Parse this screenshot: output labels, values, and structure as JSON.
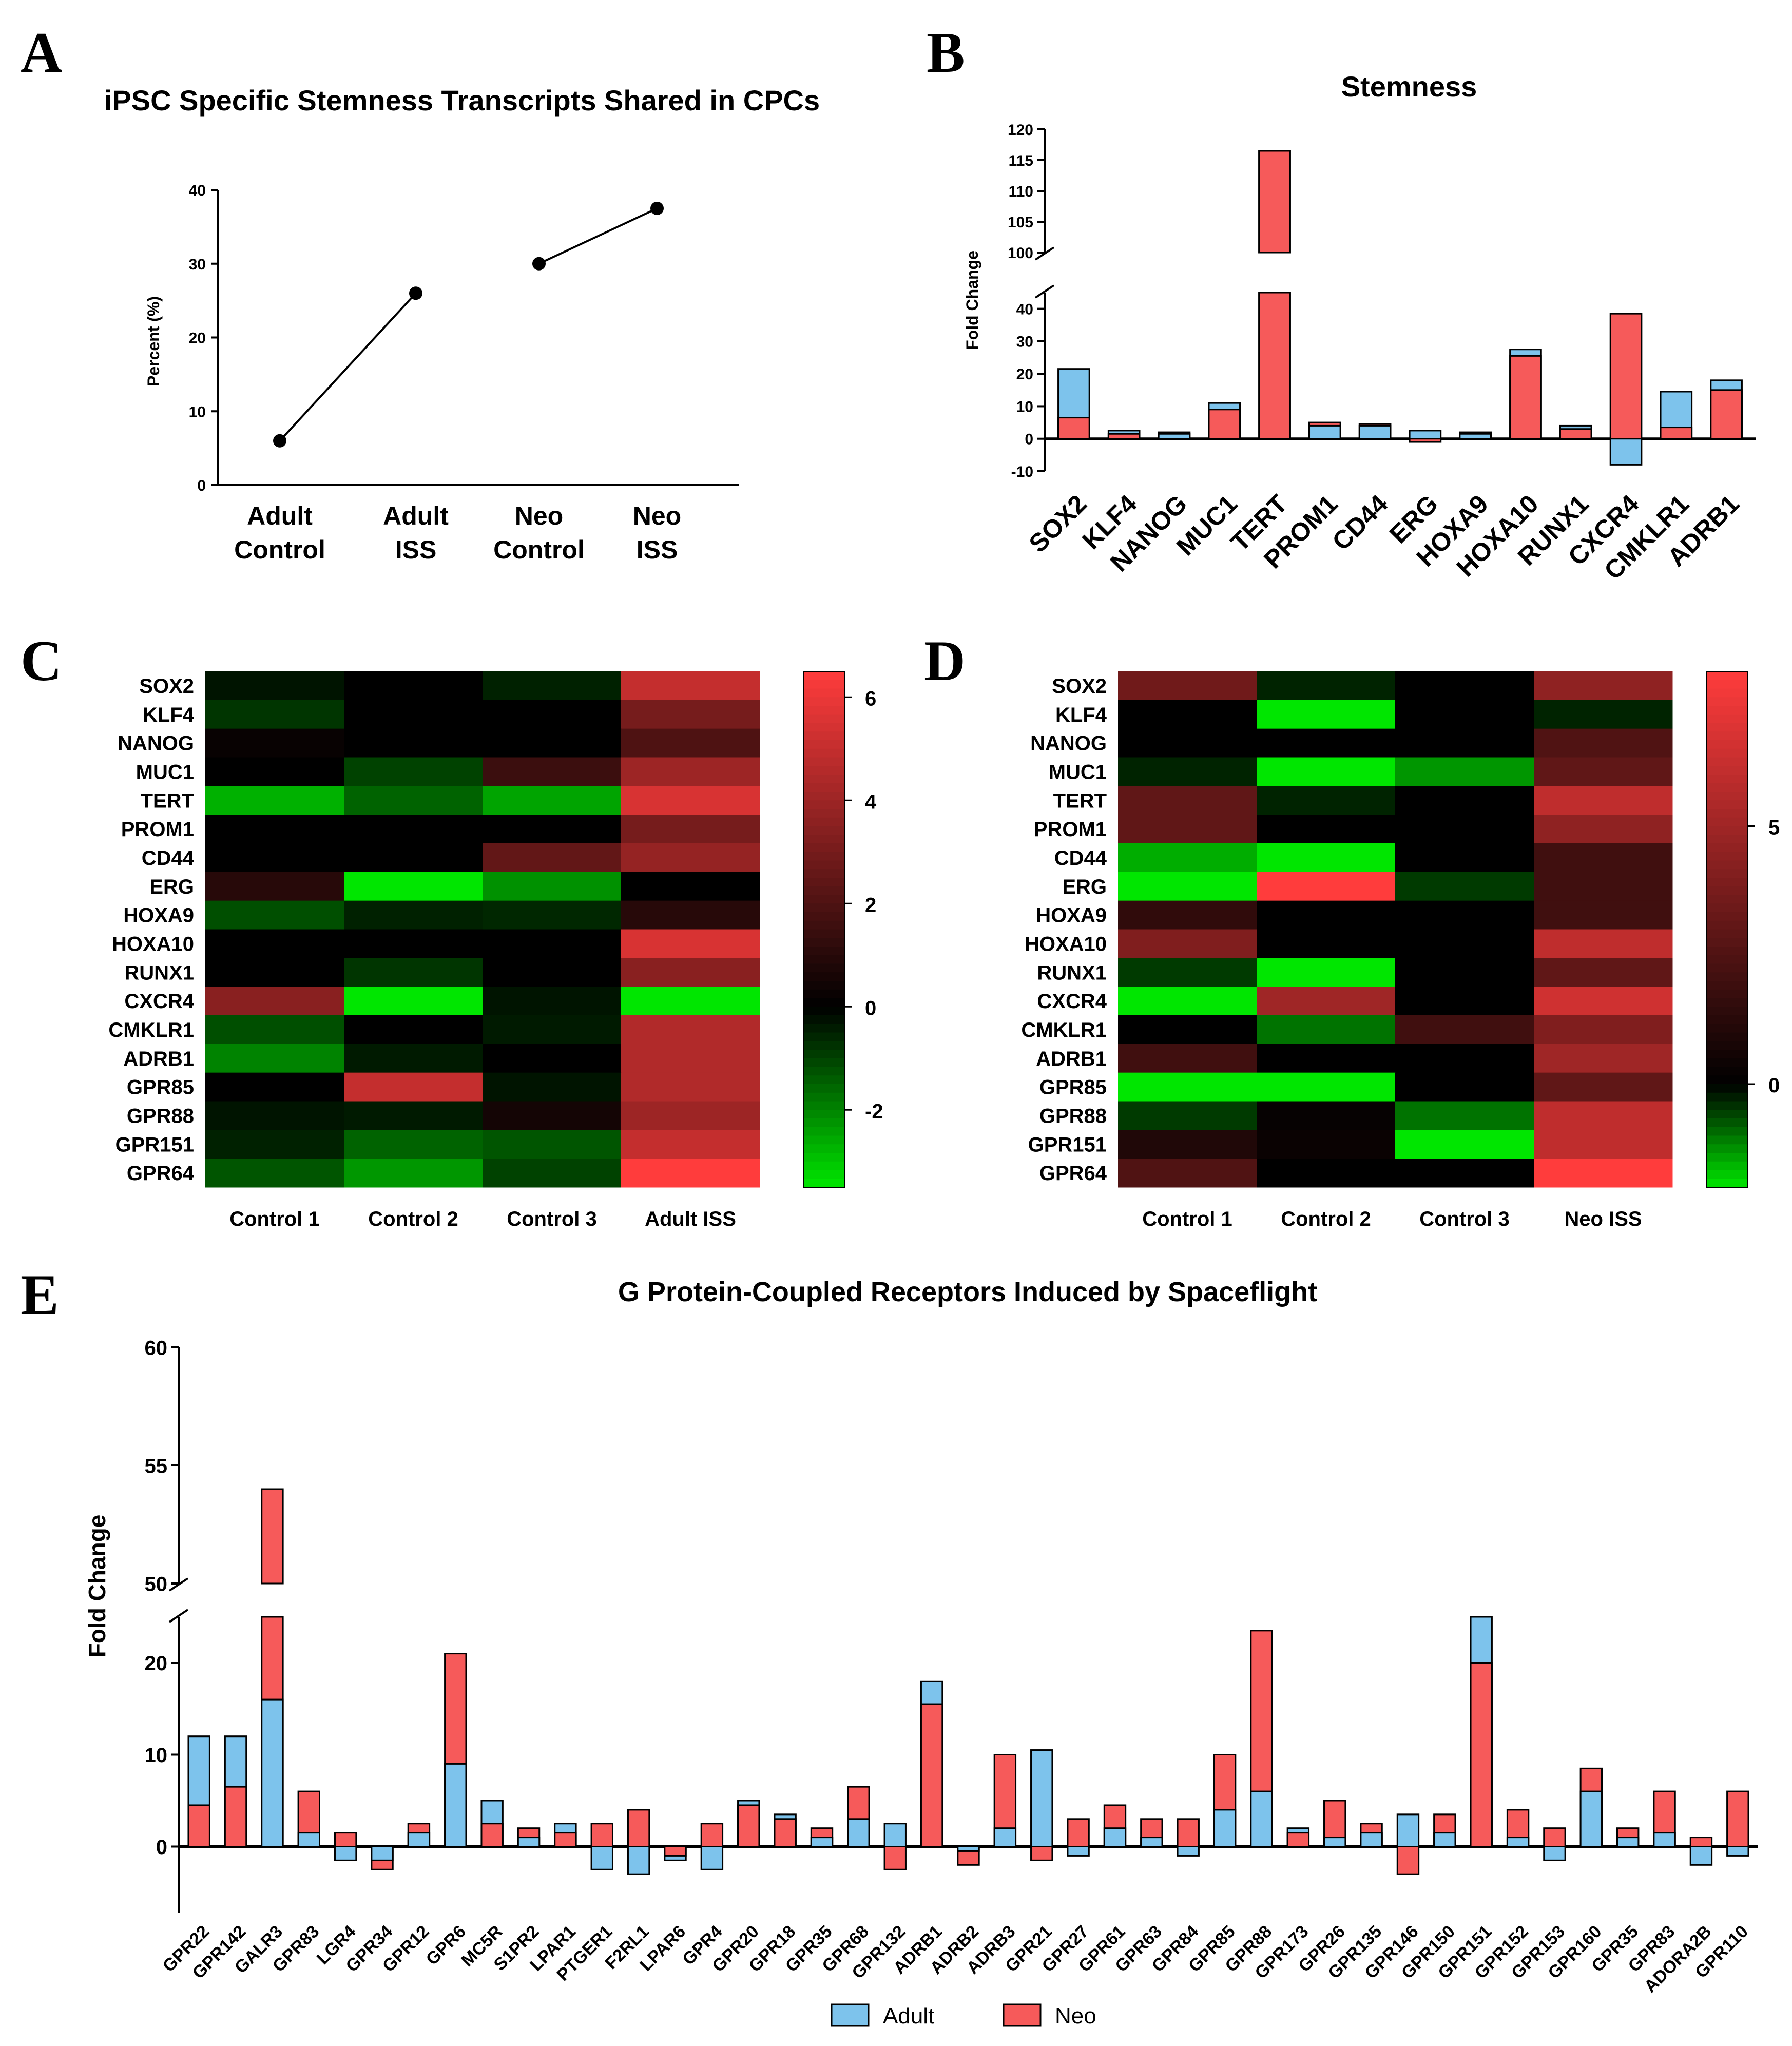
{
  "colors": {
    "adult": "#7dc3ec",
    "neo": "#f65a5a",
    "axis": "#000000"
  },
  "chart_data": [
    {
      "panel": "A",
      "type": "line",
      "title": "iPSC Specific Stemness Transcripts Shared in CPCs",
      "ylabel": "Percent (%)",
      "ylim": [
        0,
        40
      ],
      "yticks": [
        "0",
        "10",
        "20",
        "30",
        "40"
      ],
      "categories": [
        "Adult\nControl",
        "Adult\nISS",
        "Neo\nControl",
        "Neo\nISS"
      ],
      "values": [
        6,
        26,
        30,
        37.5
      ],
      "segments": [
        [
          0,
          1
        ],
        [
          2,
          3
        ]
      ]
    },
    {
      "panel": "B",
      "type": "bar",
      "title": "Stemness",
      "ylabel": "Fold Change",
      "ylim": [
        -10,
        120
      ],
      "axis_break": [
        45,
        100
      ],
      "yticks_lower": [
        "-10",
        "0",
        "10",
        "20",
        "30",
        "40"
      ],
      "yticks_upper": [
        "100",
        "105",
        "110",
        "115",
        "120"
      ],
      "categories": [
        "SOX2",
        "KLF4",
        "NANOG",
        "MUC1",
        "TERT",
        "PROM1",
        "CD44",
        "ERG",
        "HOXA9",
        "HOXA10",
        "RUNX1",
        "CXCR4",
        "CMKLR1",
        "ADRB1"
      ],
      "series": [
        {
          "name": "Adult",
          "values": [
            21.5,
            2.5,
            1.5,
            11,
            116.5,
            4,
            4,
            2.5,
            1.5,
            27.5,
            4,
            -8,
            14.5,
            18
          ]
        },
        {
          "name": "Neo",
          "values": [
            6.5,
            1.5,
            2,
            9,
            116.5,
            5,
            4.5,
            -1,
            2,
            25.5,
            3,
            38.5,
            3.5,
            15
          ]
        }
      ]
    },
    {
      "panel": "C",
      "type": "heatmap",
      "rows": [
        "SOX2",
        "KLF4",
        "NANOG",
        "MUC1",
        "TERT",
        "PROM1",
        "CD44",
        "ERG",
        "HOXA9",
        "HOXA10",
        "RUNX1",
        "CXCR4",
        "CMKLR1",
        "ADRB1",
        "GPR85",
        "GPR88",
        "GPR151",
        "GPR64"
      ],
      "columns": [
        "Control 1",
        "Control 2",
        "Control 3",
        "Adult ISS"
      ],
      "colorbar_range": [
        -3.5,
        6.5
      ],
      "colorbar_ticks": [
        "6",
        "4",
        "2",
        "0",
        "-2"
      ],
      "matrix": [
        [
          -0.3,
          0,
          -0.5,
          5
        ],
        [
          -0.8,
          0,
          0,
          3
        ],
        [
          0.2,
          0,
          0,
          2
        ],
        [
          0,
          -1,
          1.5,
          4
        ],
        [
          -2.7,
          -1.5,
          -2.5,
          5.5
        ],
        [
          0,
          0,
          0,
          3
        ],
        [
          0,
          0,
          2.5,
          3.8
        ],
        [
          1,
          -3.5,
          -2.2,
          0
        ],
        [
          -1.2,
          -0.5,
          -0.6,
          1
        ],
        [
          0,
          0,
          0,
          5.5
        ],
        [
          0,
          -0.8,
          0,
          3.5
        ],
        [
          3.5,
          -3.6,
          -0.3,
          -3.6
        ],
        [
          -1.2,
          0,
          -0.4,
          4.5
        ],
        [
          -2,
          -0.4,
          0,
          4.5
        ],
        [
          0,
          5,
          -0.3,
          4.5
        ],
        [
          -0.3,
          -0.4,
          0.5,
          4
        ],
        [
          -0.5,
          -1.5,
          -1.3,
          5
        ],
        [
          -1.3,
          -2.3,
          -1.0,
          6.5
        ]
      ]
    },
    {
      "panel": "D",
      "type": "heatmap",
      "rows": [
        "SOX2",
        "KLF4",
        "NANOG",
        "MUC1",
        "TERT",
        "PROM1",
        "CD44",
        "ERG",
        "HOXA9",
        "HOXA10",
        "RUNX1",
        "CXCR4",
        "CMKLR1",
        "ADRB1",
        "GPR85",
        "GPR88",
        "GPR151",
        "GPR64"
      ],
      "columns": [
        "Control 1",
        "Control 2",
        "Control 3",
        "Neo ISS"
      ],
      "colorbar_range": [
        -2,
        8
      ],
      "colorbar_ticks": [
        "5",
        "0"
      ],
      "matrix": [
        [
          3.5,
          -0.3,
          0,
          4.5
        ],
        [
          0,
          -3.5,
          0,
          -0.3
        ],
        [
          0,
          0,
          0,
          2.5
        ],
        [
          -0.3,
          -4.0,
          -1.3,
          3
        ],
        [
          3,
          -0.3,
          0,
          6
        ],
        [
          3,
          0,
          0,
          4.5
        ],
        [
          -1.5,
          -2.5,
          0,
          2
        ],
        [
          -2.5,
          8,
          -0.5,
          2
        ],
        [
          1.5,
          0,
          0,
          2
        ],
        [
          4,
          0,
          0,
          6
        ],
        [
          -0.5,
          -2,
          0,
          3
        ],
        [
          -2.5,
          5,
          0,
          6.5
        ],
        [
          0,
          -1,
          2,
          4
        ],
        [
          2,
          0,
          0,
          5
        ],
        [
          -3,
          -3,
          0,
          3
        ],
        [
          -0.5,
          0.2,
          -1,
          6
        ],
        [
          1,
          0.3,
          -2.5,
          6
        ],
        [
          2.5,
          0,
          0,
          8
        ]
      ]
    },
    {
      "panel": "E",
      "type": "bar",
      "title": "G Protein-Coupled Receptors Induced by Spaceflight",
      "ylabel": "Fold Change",
      "ylim": [
        -5,
        60
      ],
      "axis_break": [
        25,
        50
      ],
      "yticks_lower": [
        "0",
        "10",
        "20"
      ],
      "yticks_upper": [
        "50",
        "55",
        "60"
      ],
      "legend": [
        "Adult",
        "Neo"
      ],
      "legend_position": "bottom-center",
      "categories": [
        "GPR22",
        "GPR142",
        "GALR3",
        "GPR83",
        "LGR4",
        "GPR34",
        "GPR12",
        "GPR6",
        "MC5R",
        "S1PR2",
        "LPAR1",
        "PTGER1",
        "F2RL1",
        "LPAR6",
        "GPR4",
        "GPR20",
        "GPR18",
        "GPR35",
        "GPR68",
        "GPR132",
        "ADRB1",
        "ADRB2",
        "ADRB3",
        "GPR21",
        "GPR27",
        "GPR61",
        "GPR63",
        "GPR84",
        "GPR85",
        "GPR88",
        "GPR173",
        "GPR26",
        "GPR135",
        "GPR146",
        "GPR150",
        "GPR151",
        "GPR152",
        "GPR153",
        "GPR160",
        "GPR35",
        "GPR83",
        "ADORA2B",
        "GPR110"
      ],
      "series": [
        {
          "name": "Adult",
          "values": [
            12,
            12,
            16,
            1.5,
            -1.5,
            -1.5,
            1.5,
            9,
            5,
            1,
            2.5,
            -2.5,
            -3,
            -1.5,
            -2.5,
            5,
            3.5,
            1,
            3,
            2.5,
            18,
            -0.5,
            2,
            10.5,
            -1,
            2,
            1,
            -1,
            4,
            6,
            2,
            1,
            1.5,
            3.5,
            1.5,
            26,
            1,
            -1.5,
            6,
            1,
            1.5,
            -2,
            -1
          ]
        },
        {
          "name": "Neo",
          "values": [
            4.5,
            6.5,
            54,
            6,
            1.5,
            -2.5,
            2.5,
            21,
            2.5,
            2,
            1.5,
            2.5,
            4,
            -1,
            2.5,
            4.5,
            3,
            2,
            6.5,
            -2.5,
            15.5,
            -2,
            10,
            -1.5,
            3,
            4.5,
            3,
            3,
            10,
            23.5,
            1.5,
            5,
            2.5,
            -3,
            3.5,
            20,
            4,
            2,
            8.5,
            2,
            6,
            1,
            6
          ]
        }
      ]
    }
  ]
}
